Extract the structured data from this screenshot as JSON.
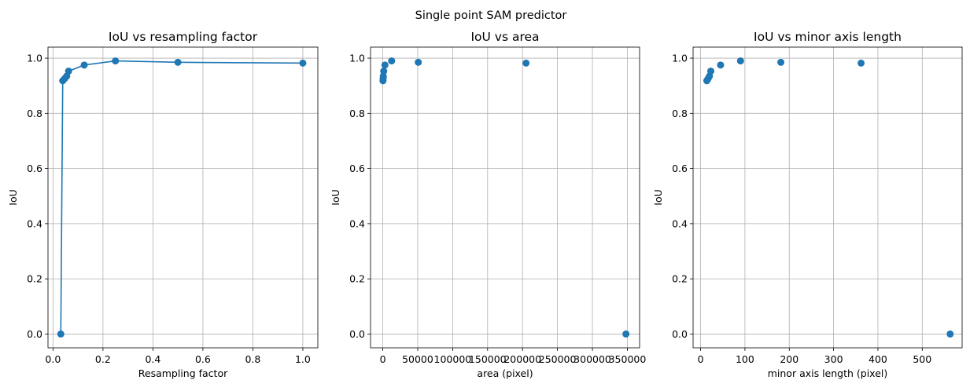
{
  "figure": {
    "suptitle": "Single point SAM predictor",
    "colors": {
      "series": "#1f77b4",
      "grid": "#b0b0b0",
      "frame": "#000000"
    }
  },
  "chart_data": [
    {
      "type": "line",
      "title": "IoU vs resampling factor",
      "xlabel": "Resampling factor",
      "ylabel": "IoU",
      "xlim": [
        -0.02,
        1.06
      ],
      "ylim": [
        -0.05,
        1.04
      ],
      "xticks": [
        0.0,
        0.2,
        0.4,
        0.6,
        0.8,
        1.0
      ],
      "xtick_labels": [
        "0.0",
        "0.2",
        "0.4",
        "0.6",
        "0.8",
        "1.0"
      ],
      "yticks": [
        0.0,
        0.2,
        0.4,
        0.6,
        0.8,
        1.0
      ],
      "ytick_labels": [
        "0.0",
        "0.2",
        "0.4",
        "0.6",
        "0.8",
        "1.0"
      ],
      "grid": true,
      "markers": true,
      "x": [
        0.03125,
        0.039,
        0.047,
        0.055,
        0.0625,
        0.125,
        0.25,
        0.5,
        1.0
      ],
      "y": [
        0.0,
        0.918,
        0.926,
        0.935,
        0.953,
        0.975,
        0.99,
        0.985,
        0.982
      ]
    },
    {
      "type": "scatter",
      "title": "IoU vs area",
      "xlabel": "area (pixel)",
      "ylabel": "IoU",
      "xlim": [
        -17500,
        367500
      ],
      "ylim": [
        -0.05,
        1.04
      ],
      "xticks": [
        0,
        50000,
        100000,
        150000,
        200000,
        250000,
        300000,
        350000
      ],
      "xtick_labels": [
        "0",
        "50000",
        "100000",
        "150000",
        "200000",
        "250000",
        "300000",
        "350000"
      ],
      "yticks": [
        0.0,
        0.2,
        0.4,
        0.6,
        0.8,
        1.0
      ],
      "ytick_labels": [
        "0.0",
        "0.2",
        "0.4",
        "0.6",
        "0.8",
        "1.0"
      ],
      "grid": true,
      "x": [
        340,
        530,
        760,
        1360,
        3100,
        12700,
        50800,
        205000,
        348000
      ],
      "y": [
        0.918,
        0.926,
        0.935,
        0.953,
        0.975,
        0.99,
        0.985,
        0.982,
        0.0
      ]
    },
    {
      "type": "scatter",
      "title": "IoU vs minor axis length",
      "xlabel": "minor axis length (pixel)",
      "ylabel": "IoU",
      "xlim": [
        -17,
        590
      ],
      "ylim": [
        -0.05,
        1.04
      ],
      "xticks": [
        0,
        100,
        200,
        300,
        400,
        500
      ],
      "xtick_labels": [
        "0",
        "100",
        "200",
        "300",
        "400",
        "500"
      ],
      "yticks": [
        0.0,
        0.2,
        0.4,
        0.6,
        0.8,
        1.0
      ],
      "ytick_labels": [
        "0.0",
        "0.2",
        "0.4",
        "0.6",
        "0.8",
        "1.0"
      ],
      "grid": true,
      "x": [
        14,
        17,
        20,
        23,
        45,
        90,
        181,
        362,
        563
      ],
      "y": [
        0.918,
        0.926,
        0.935,
        0.953,
        0.975,
        0.99,
        0.985,
        0.982,
        0.0
      ]
    }
  ]
}
